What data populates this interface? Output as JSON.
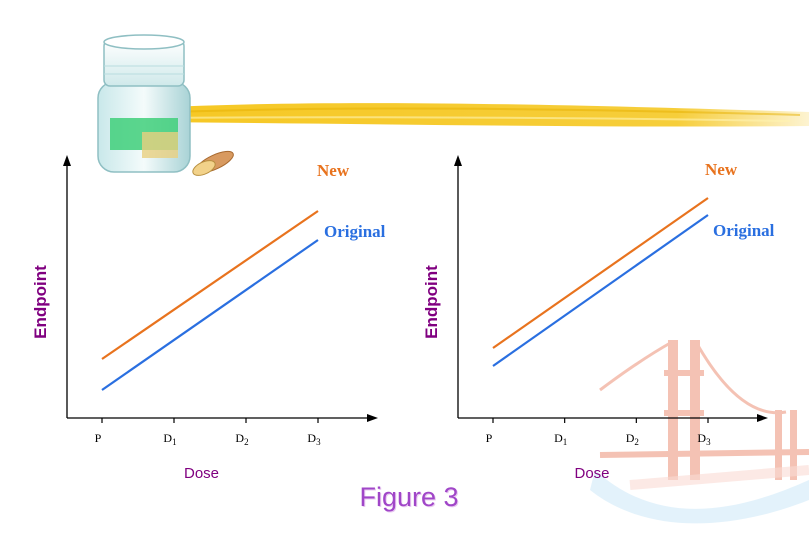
{
  "figure_caption": "Figure 3",
  "colors": {
    "new": "#e8731e",
    "original": "#2a6fe0",
    "axis_label": "#800080",
    "caption": "#a046c8",
    "highlight": "#f5c518"
  },
  "decorations": [
    "pill-bottle-icon",
    "golden-gate-bridge-image",
    "highlighter-stroke"
  ],
  "chart_data": [
    {
      "type": "line",
      "title": "",
      "xlabel": "Dose",
      "ylabel": "Endpoint",
      "x": [
        0,
        3
      ],
      "categories": [
        {
          "base": "P",
          "sub": ""
        },
        {
          "base": "D",
          "sub": "1"
        },
        {
          "base": "D",
          "sub": "2"
        },
        {
          "base": "D",
          "sub": "3"
        }
      ],
      "series": [
        {
          "name": "New",
          "values": [
            2.0,
            6.8
          ]
        },
        {
          "name": "Original",
          "values": [
            1.0,
            5.8
          ]
        }
      ],
      "ylim": [
        0,
        8
      ],
      "grid": false
    },
    {
      "type": "line",
      "title": "",
      "xlabel": "Dose",
      "ylabel": "Endpoint",
      "x": [
        0,
        3
      ],
      "categories": [
        {
          "base": "P",
          "sub": ""
        },
        {
          "base": "D",
          "sub": "1"
        },
        {
          "base": "D",
          "sub": "2"
        },
        {
          "base": "D",
          "sub": "3"
        }
      ],
      "series": [
        {
          "name": "New",
          "values": [
            2.4,
            7.2
          ]
        },
        {
          "name": "Original",
          "values": [
            1.8,
            6.6
          ]
        }
      ],
      "ylim": [
        0,
        8
      ],
      "grid": false
    }
  ]
}
